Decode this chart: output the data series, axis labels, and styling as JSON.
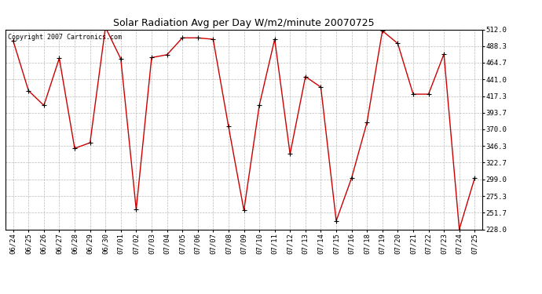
{
  "title": "Solar Radiation Avg per Day W/m2/minute 20070725",
  "copyright_text": "Copyright 2007 Cartronics.com",
  "dates": [
    "06/24",
    "06/25",
    "06/26",
    "06/27",
    "06/28",
    "06/29",
    "06/30",
    "07/01",
    "07/02",
    "07/03",
    "07/04",
    "07/05",
    "07/06",
    "07/07",
    "07/08",
    "07/09",
    "07/10",
    "07/11",
    "07/12",
    "07/13",
    "07/14",
    "07/15",
    "07/16",
    "07/18",
    "07/19",
    "07/20",
    "07/21",
    "07/22",
    "07/23",
    "07/24",
    "07/25"
  ],
  "values": [
    496,
    425,
    404,
    471,
    343,
    351,
    515,
    470,
    256,
    472,
    476,
    500,
    500,
    498,
    374,
    255,
    404,
    498,
    335,
    445,
    430,
    240,
    301,
    380,
    510,
    492,
    420,
    420,
    477,
    228,
    301
  ],
  "y_ticks": [
    228.0,
    251.7,
    275.3,
    299.0,
    322.7,
    346.3,
    370.0,
    393.7,
    417.3,
    441.0,
    464.7,
    488.3,
    512.0
  ],
  "y_min": 228.0,
  "y_max": 512.0,
  "line_color": "#cc0000",
  "marker": "+",
  "marker_size": 4,
  "marker_color": "#000000",
  "background_color": "#ffffff",
  "grid_color": "#bbbbbb",
  "title_fontsize": 9,
  "tick_fontsize": 6.5,
  "copyright_fontsize": 6
}
